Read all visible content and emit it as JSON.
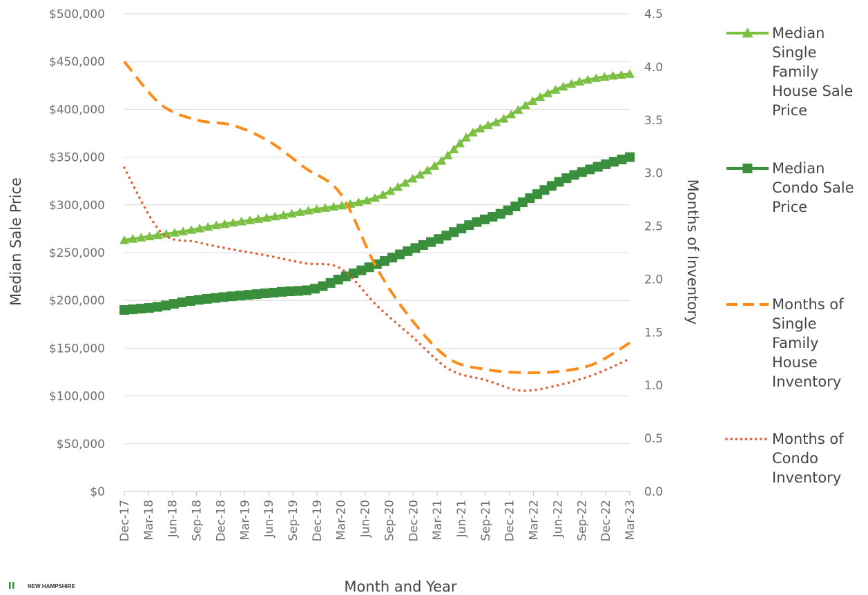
{
  "chart_data": {
    "type": "line",
    "xlabel": "Month and Year",
    "ylabel": "Median Sale Price",
    "y2label": "Months of Inventory",
    "ylim": [
      0,
      500000
    ],
    "y2lim": [
      0,
      4.5
    ],
    "y_ticks": [
      "$0",
      "$50,000",
      "$100,000",
      "$150,000",
      "$200,000",
      "$250,000",
      "$300,000",
      "$350,000",
      "$400,000",
      "$450,000",
      "$500,000"
    ],
    "y2_ticks": [
      "0.0",
      "0.5",
      "1.0",
      "1.5",
      "2.0",
      "2.5",
      "3.0",
      "3.5",
      "4.0",
      "4.5"
    ],
    "x_tick_labels": [
      "Dec-17",
      "Mar-18",
      "Jun-18",
      "Sep-18",
      "Dec-18",
      "Mar-19",
      "Jun-19",
      "Sep-19",
      "Dec-19",
      "Mar-20",
      "Jun-20",
      "Sep-20",
      "Dec-20",
      "Mar-21",
      "Jun-21",
      "Sep-21",
      "Dec-21",
      "Mar-22",
      "Jun-22",
      "Sep-22",
      "Dec-22",
      "Mar-23"
    ],
    "grid": true,
    "legend_position": "right",
    "series": [
      {
        "name": "Median Single Family House Sale Price",
        "axis": "left",
        "style": "solid-triangle",
        "color": "#7bc043",
        "values": [
          263000,
          268000,
          273000,
          279000,
          284000,
          289000,
          295000,
          300000,
          308000,
          325000,
          345000,
          375000,
          390000,
          410000,
          425000,
          433000,
          437000
        ]
      },
      {
        "name": "Median Condo Sale Price",
        "axis": "left",
        "style": "solid-square",
        "color": "#3a8f3c",
        "values": [
          190000,
          193000,
          199000,
          203000,
          206000,
          209000,
          212000,
          225000,
          238000,
          252000,
          265000,
          280000,
          292000,
          310000,
          328000,
          340000,
          350000
        ]
      },
      {
        "name": "Months of Single Family House Inventory",
        "axis": "right",
        "style": "dashed",
        "color": "#ff8c1a",
        "values": [
          4.05,
          3.65,
          3.5,
          3.45,
          3.3,
          3.05,
          2.8,
          2.1,
          1.6,
          1.25,
          1.15,
          1.12,
          1.13,
          1.2,
          1.4
        ]
      },
      {
        "name": "Months of Condo Inventory",
        "axis": "right",
        "style": "dotted",
        "color": "#e35b2e",
        "values": [
          3.05,
          2.45,
          2.35,
          2.28,
          2.22,
          2.15,
          2.1,
          1.75,
          1.45,
          1.15,
          1.05,
          0.95,
          1.0,
          1.1,
          1.25
        ]
      }
    ]
  },
  "logo": {
    "text": "NEW HAMPSHIRE"
  }
}
